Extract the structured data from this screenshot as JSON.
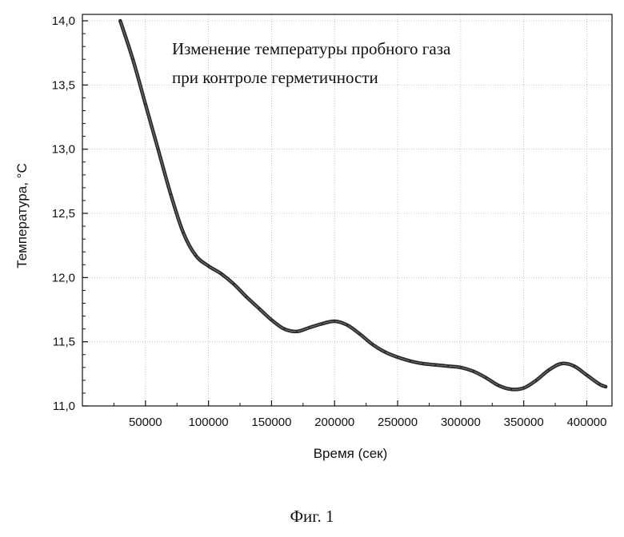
{
  "chart_data": {
    "type": "line",
    "annotation": [
      "Изменение температуры пробного газа",
      "при контроле герметичности"
    ],
    "xlabel": "Время (сек)",
    "ylabel": "Температура, °С",
    "xlim": [
      0,
      420000
    ],
    "ylim": [
      11.0,
      14.05
    ],
    "x_ticks": [
      50000,
      100000,
      150000,
      200000,
      250000,
      300000,
      350000,
      400000
    ],
    "x_tick_labels": [
      "50000",
      "100000",
      "150000",
      "200000",
      "250000",
      "300000",
      "350000",
      "400000"
    ],
    "y_ticks": [
      11.0,
      11.5,
      12.0,
      12.5,
      13.0,
      13.5,
      14.0
    ],
    "y_tick_labels": [
      "11,0",
      "11,5",
      "12,0",
      "12,5",
      "13,0",
      "13,5",
      "14,0"
    ],
    "grid": true,
    "series": [
      {
        "color": "#2b2b2b",
        "x": [
          30000,
          40000,
          50000,
          60000,
          70000,
          80000,
          90000,
          100000,
          110000,
          120000,
          130000,
          140000,
          150000,
          160000,
          170000,
          180000,
          190000,
          200000,
          210000,
          220000,
          230000,
          240000,
          250000,
          260000,
          270000,
          280000,
          290000,
          300000,
          310000,
          320000,
          330000,
          340000,
          350000,
          360000,
          370000,
          380000,
          390000,
          400000,
          410000,
          415000
        ],
        "y": [
          14.0,
          13.7,
          13.35,
          13.0,
          12.65,
          12.35,
          12.17,
          12.09,
          12.03,
          11.95,
          11.85,
          11.76,
          11.67,
          11.6,
          11.58,
          11.61,
          11.64,
          11.66,
          11.63,
          11.56,
          11.48,
          11.42,
          11.38,
          11.35,
          11.33,
          11.32,
          11.31,
          11.3,
          11.27,
          11.22,
          11.16,
          11.13,
          11.14,
          11.2,
          11.28,
          11.33,
          11.31,
          11.24,
          11.17,
          11.15
        ]
      }
    ]
  },
  "caption": "Фиг. 1"
}
